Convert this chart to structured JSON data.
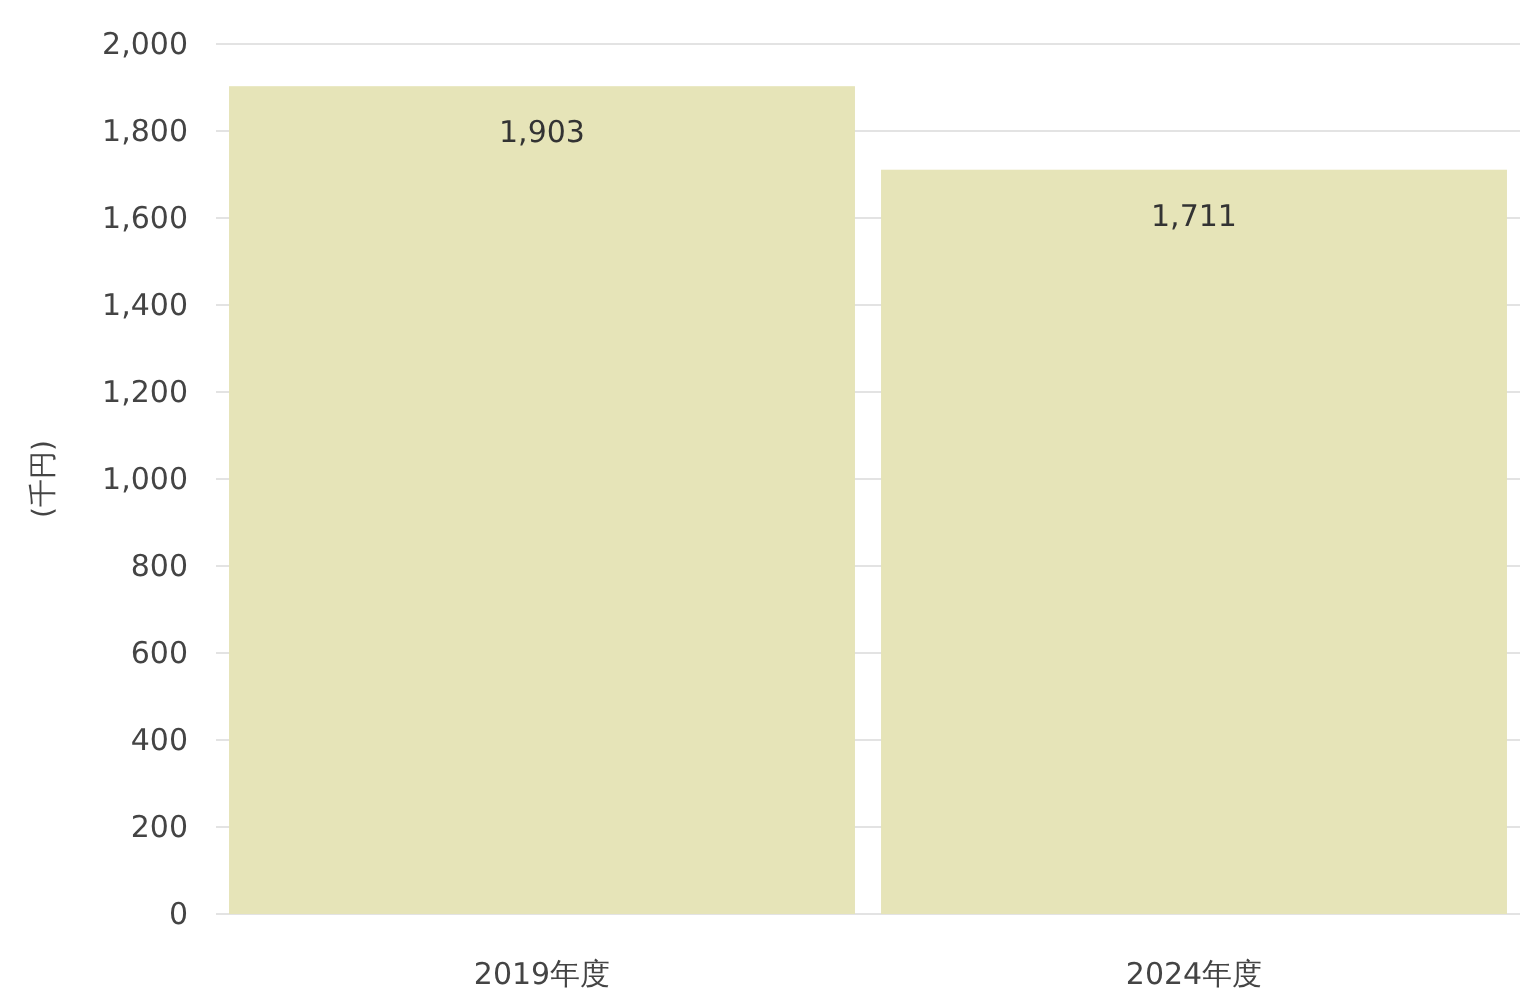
{
  "chart_data": {
    "type": "bar",
    "ylabel": "(千円)",
    "categories": [
      "2019年度",
      "2024年度"
    ],
    "values": [
      1903,
      1711
    ],
    "color": "#e6e4b8",
    "value_labels": [
      "1,903",
      "1,711"
    ],
    "ylim": [
      0,
      2000
    ],
    "yticks": [
      {
        "value": 0,
        "label": "0"
      },
      {
        "value": 200,
        "label": "200"
      },
      {
        "value": 400,
        "label": "400"
      },
      {
        "value": 600,
        "label": "600"
      },
      {
        "value": 800,
        "label": "800"
      },
      {
        "value": 1000,
        "label": "1,000"
      },
      {
        "value": 1200,
        "label": "1,200"
      },
      {
        "value": 1400,
        "label": "1,400"
      },
      {
        "value": 1600,
        "label": "1,600"
      },
      {
        "value": 1800,
        "label": "1,800"
      },
      {
        "value": 2000,
        "label": "2,000"
      }
    ],
    "grid": "y"
  }
}
